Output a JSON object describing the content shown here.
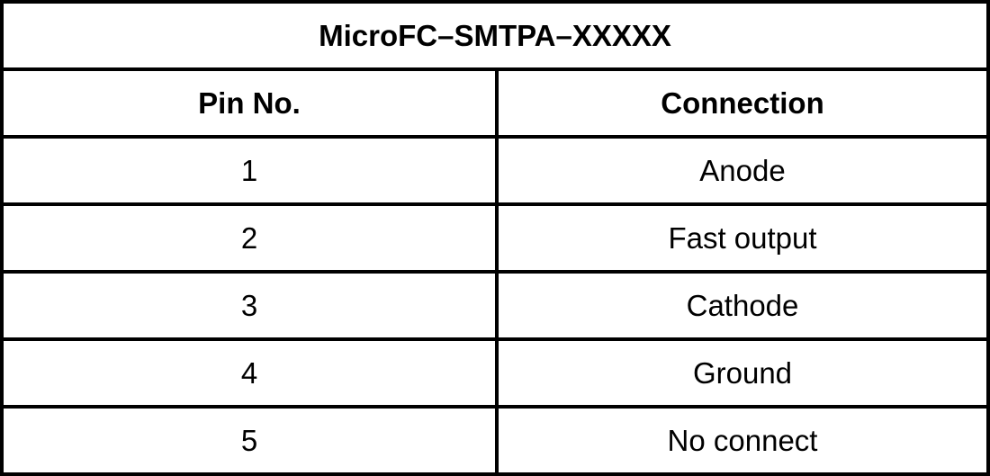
{
  "title": "MicroFC–SMTPA–XXXXX",
  "headers": [
    "Pin No.",
    "Connection"
  ],
  "rows": [
    [
      "1",
      "Anode"
    ],
    [
      "2",
      "Fast output"
    ],
    [
      "3",
      "Cathode"
    ],
    [
      "4",
      "Ground"
    ],
    [
      "5",
      "No connect"
    ]
  ]
}
